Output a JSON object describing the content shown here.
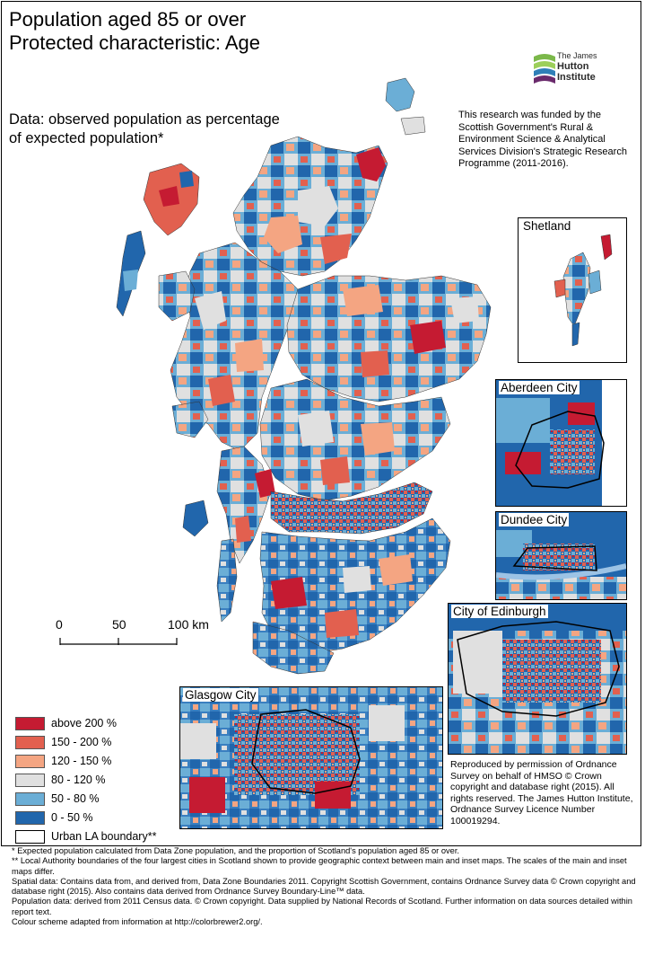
{
  "title": {
    "line1": "Population aged 85 or over",
    "line2": "Protected characteristic: Age"
  },
  "subtitle": {
    "line1": "Data: observed population as percentage",
    "line2": "of expected population*"
  },
  "logo": {
    "line1": "The James",
    "line2": "Hutton",
    "line3": "Institute",
    "colors": [
      "#7bb84a",
      "#2f7fb8",
      "#6a2a6c"
    ]
  },
  "funding": {
    "text": "This research was funded by the Scottish Government's Rural & Environment Science & Analytical Services Division's Strategic Research Programme (2011-2016)."
  },
  "insets": {
    "shetland": "Shetland",
    "aberdeen": "Aberdeen City",
    "dundee": "Dundee City",
    "edinburgh": "City of Edinburgh",
    "glasgow": "Glasgow City"
  },
  "scale": {
    "tick0": "0",
    "tick1": "50",
    "tick2": "100 km"
  },
  "legend": [
    {
      "label": "above 200 %",
      "color": "#c51b32"
    },
    {
      "label": "150 - 200 %",
      "color": "#e2604f"
    },
    {
      "label": "120 - 150 %",
      "color": "#f4a582"
    },
    {
      "label": "80 - 120 %",
      "color": "#e0e0e0"
    },
    {
      "label": "50 - 80 %",
      "color": "#6baed6"
    },
    {
      "label": "0 - 50 %",
      "color": "#2166ac"
    },
    {
      "label": "Urban LA boundary**",
      "color": "#ffffff"
    }
  ],
  "reproduced": {
    "text": "Reproduced by permission of Ordnance Survey on behalf of HMSO © Crown copyright and database right (2015). All rights reserved. The James Hutton Institute, Ordnance Survey Licence Number 100019294."
  },
  "footnotes": [
    "* Expected population calculated from Data Zone population, and the proportion of Scotland's population aged 85 or over.",
    "** Local Authority boundaries of the four largest cities in Scotland shown to provide geographic context between main and inset maps. The scales of the main and inset maps differ.",
    "Spatial data: Contains data from, and derived from, Data Zone Boundaries 2011. Copyright Scottish Government, contains Ordnance Survey data © Crown copyright and database right (2015). Also contains data derived from Ordnance Survey Boundary-Line™ data.",
    "Population data: derived from 2011 Census data. © Crown copyright. Data supplied by National Records of Scotland. Further information on data sources detailed within report text.",
    "Colour scheme adapted from information at http://colorbrewer2.org/."
  ]
}
